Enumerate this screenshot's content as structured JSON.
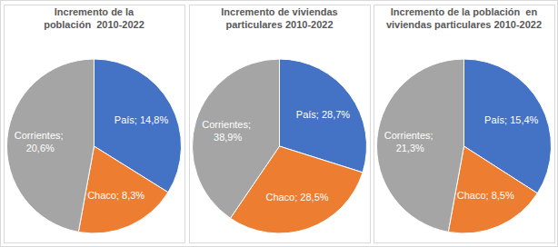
{
  "chart_data": [
    {
      "type": "pie",
      "title": "Incremento de la\npoblación  2010-2022",
      "categories": [
        "País",
        "Chaco",
        "Corrientes"
      ],
      "values": [
        14.8,
        8.3,
        20.6
      ],
      "value_labels": [
        "País; 14,8%",
        "Chaco; 8,3%",
        "Corrientes; 20,6%"
      ],
      "colors": [
        "#4472c4",
        "#ed7d31",
        "#a5a5a5"
      ],
      "data_labels": true
    },
    {
      "type": "pie",
      "title": "Incremento de viviendas\nparticulares 2010-2022",
      "categories": [
        "País",
        "Chaco",
        "Corrientes"
      ],
      "values": [
        28.7,
        28.5,
        38.9
      ],
      "value_labels": [
        "País; 28,7%",
        "Chaco; 28,5%",
        "Corrientes; 38,9%"
      ],
      "colors": [
        "#4472c4",
        "#ed7d31",
        "#a5a5a5"
      ],
      "data_labels": true
    },
    {
      "type": "pie",
      "title": "Incremento de la población  en\nviviendas particulares 2010-2022",
      "categories": [
        "País",
        "Chaco",
        "Corrientes"
      ],
      "values": [
        15.4,
        8.5,
        21.3
      ],
      "value_labels": [
        "País; 15,4%",
        "Chaco; 8,5%",
        "Corrientes; 21,3%"
      ],
      "colors": [
        "#4472c4",
        "#ed7d31",
        "#a5a5a5"
      ],
      "data_labels": true
    }
  ]
}
